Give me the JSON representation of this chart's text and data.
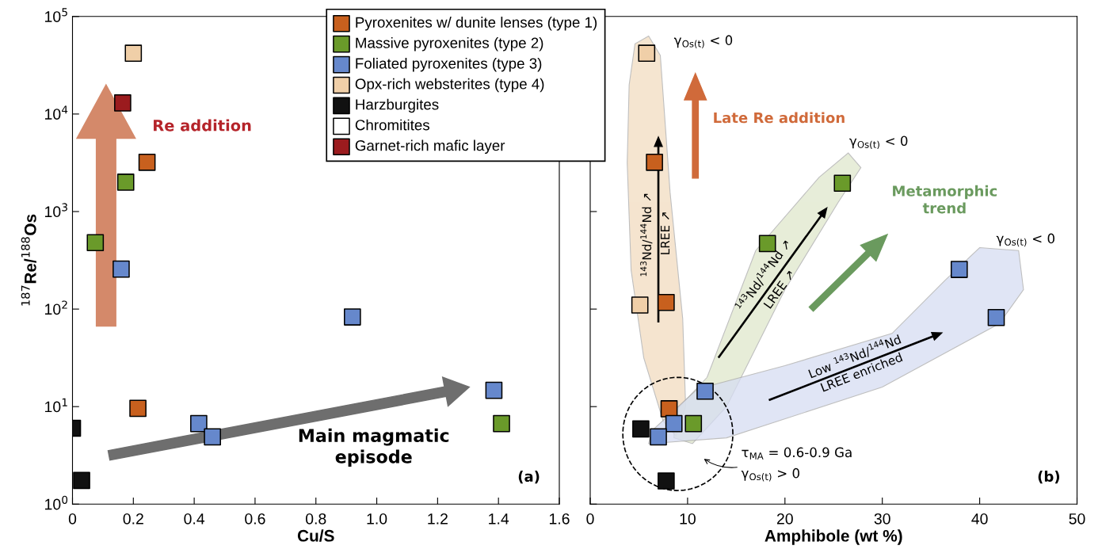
{
  "chart_data": [
    {
      "type": "scatter",
      "xlabel": "Cu/S",
      "ylabel": "$^{187}$Re/$^{188}$Os",
      "log": "y",
      "marker": "square",
      "legend": "top right",
      "grid": false,
      "xlim": [
        0,
        1.6
      ],
      "xticks": [
        0,
        0.2,
        0.4,
        0.6,
        0.8,
        {
          "value": 1.0,
          "label": "1.0"
        },
        1.2,
        1.4,
        1.6
      ],
      "ylim": [
        1,
        100000
      ],
      "yticks": [
        {
          "value": 1,
          "label": "10$^{0}$"
        },
        {
          "value": 10,
          "label": "10$^{1}$"
        },
        {
          "value": 100,
          "label": "10$^{2}$"
        },
        {
          "value": 1000,
          "label": "10$^{3}$"
        },
        {
          "value": 10000,
          "label": "10$^{4}$"
        },
        {
          "value": 100000,
          "label": "10$^{5}$"
        }
      ],
      "series": [
        {
          "name": "Pyroxenites w/ dunite lenses (type 1)",
          "color": "#c8601e",
          "x": [
            0.245,
            0.215
          ],
          "values": [
            3200,
            9.6
          ]
        },
        {
          "name": "Massive pyroxenites (type 2)",
          "color": "#6a9a2a",
          "x": [
            0.175,
            0.075,
            1.41
          ],
          "values": [
            2000,
            480,
            6.7
          ]
        },
        {
          "name": "Foliated pyroxenites (type 3)",
          "color": "#6688cc",
          "x": [
            0.16,
            0.92,
            1.385,
            0.415,
            0.46
          ],
          "values": [
            257,
            83,
            14.7,
            6.7,
            4.9
          ]
        },
        {
          "name": "Opx-rich websterites (type 4)",
          "color": "#f0cfa8",
          "x": [
            0.2
          ],
          "values": [
            42000
          ]
        },
        {
          "name": "Harzburgites",
          "color": "#111111",
          "x": [
            0.0,
            0.03
          ],
          "values": [
            6.0,
            1.75
          ]
        },
        {
          "name": "Chromitites",
          "color": "#ffffff"
        },
        {
          "name": "Garnet-rich mafic layer",
          "color": "#9b1b1e",
          "x": [
            0.165
          ],
          "values": [
            13000
          ]
        }
      ],
      "annotations": [
        "Re addition",
        "Main magmatic\nepisode",
        "(a)"
      ]
    },
    {
      "type": "scatter",
      "xlabel": "Amphibole (wt %)",
      "log": "y",
      "marker": "square",
      "legend": false,
      "grid": false,
      "tick_labels": "x",
      "xlim": [
        0,
        50
      ],
      "xticks": [
        0,
        10,
        20,
        30,
        40,
        50
      ],
      "ylim": [
        1,
        100000
      ],
      "yticks": [
        1,
        10,
        100,
        1000,
        10000,
        100000
      ],
      "series": [
        {
          "color": "#c8601e",
          "x": [
            6.6,
            7.8,
            8.1
          ],
          "values": [
            3200,
            117,
            9.5
          ]
        },
        {
          "color": "#6a9a2a",
          "x": [
            25.9,
            18.2,
            10.6
          ],
          "values": [
            1950,
            470,
            6.7
          ]
        },
        {
          "color": "#6688cc",
          "x": [
            37.9,
            41.7,
            11.8,
            8.6,
            7.0
          ],
          "values": [
            255,
            82,
            14.4,
            6.7,
            4.9
          ]
        },
        {
          "color": "#f0cfa8",
          "x": [
            5.8,
            5.1
          ],
          "values": [
            42000,
            110
          ]
        },
        {
          "color": "#111111",
          "x": [
            5.2,
            7.8
          ],
          "values": [
            5.9,
            1.73
          ]
        }
      ],
      "annotations": [
        "γ$_{Os(t)}$ < 0",
        "γ$_{Os(t)}$ < 0",
        "γ$_{Os(t)}$ < 0",
        "Late Re addition",
        "Metamorphic\ntrend",
        "τ$_{MA}$ = 0.6-0.9 Ga",
        "γ$_{Os(t)}$ > 0",
        "(b)",
        "$^{143}$Nd/$^{144}$Nd ↗",
        "LREE ↗",
        "$^{143}$Nd/$^{144}$Nd ↗",
        "LREE ↗",
        "Low $^{143}$Nd/$^{144}$Nd",
        "LREE enriched"
      ]
    }
  ]
}
